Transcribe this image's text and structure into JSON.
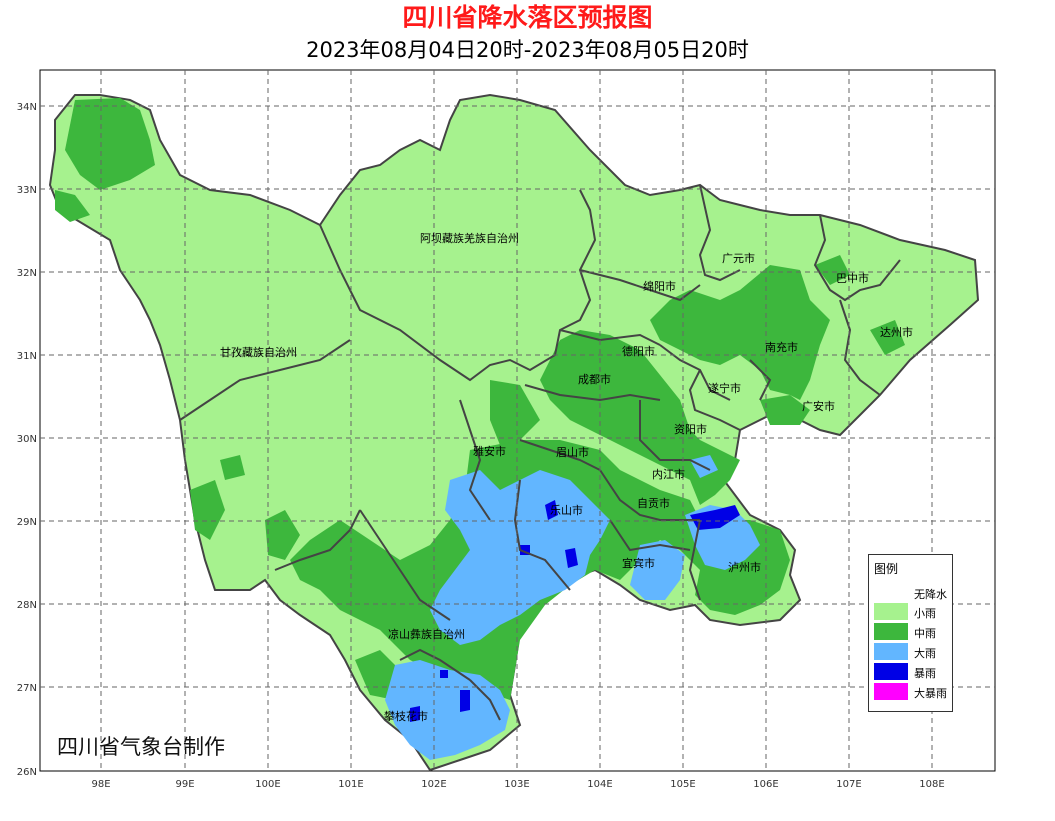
{
  "header": {
    "title": "四川省降水落区预报图",
    "period": "2023年08月04日20时-2023年08月05日20时"
  },
  "axes": {
    "lon_labels": [
      "98E",
      "99E",
      "100E",
      "101E",
      "102E",
      "103E",
      "104E",
      "105E",
      "106E",
      "107E",
      "108E"
    ],
    "lat_labels": [
      "34N",
      "33N",
      "32N",
      "31N",
      "30N",
      "29N",
      "28N",
      "27N",
      "26N"
    ]
  },
  "regions": {
    "aba": "阿坝藏族羌族自治州",
    "ganzi": "甘孜藏族自治州",
    "liangshan": "凉山彝族自治州",
    "guangyuan": "广元市",
    "bazhong": "巴中市",
    "mianyang": "绵阳市",
    "dazhou": "达州市",
    "deyang": "德阳市",
    "nanchong": "南充市",
    "chengdu": "成都市",
    "suining": "遂宁市",
    "guangan": "广安市",
    "ziyang": "资阳市",
    "yaan": "雅安市",
    "meishan": "眉山市",
    "neijiang": "内江市",
    "zigong": "自贡市",
    "leshan": "乐山市",
    "yibin": "宜宾市",
    "luzhou": "泸州市",
    "panzhihua": "攀枝花市"
  },
  "legend": {
    "title": "图例",
    "items": [
      {
        "label": "无降水",
        "color": "#ffffff"
      },
      {
        "label": "小雨",
        "color": "#a6f28e"
      },
      {
        "label": "中雨",
        "color": "#3db73d"
      },
      {
        "label": "大雨",
        "color": "#62b6ff"
      },
      {
        "label": "暴雨",
        "color": "#0000e6"
      },
      {
        "label": "大暴雨",
        "color": "#ff00ff"
      }
    ]
  },
  "credit": "四川省气象台制作"
}
